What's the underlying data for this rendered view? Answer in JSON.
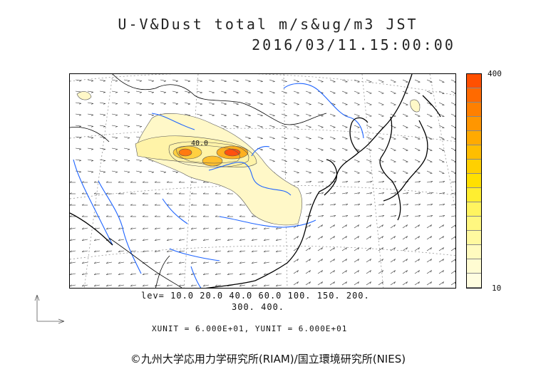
{
  "header": {
    "title_line1": "U-V&Dust total m/s&ug/m3 JST",
    "title_line2": "2016/03/11.15:00:00"
  },
  "legend": {
    "max_label": "400",
    "min_label": "10",
    "colors": [
      "#ff5000",
      "#ff6a00",
      "#ff8000",
      "#ff9600",
      "#ffaa00",
      "#ffbe00",
      "#ffd000",
      "#ffe000",
      "#ffee30",
      "#fff460",
      "#fff780",
      "#fff9a0",
      "#fffbbf",
      "#fffcd2",
      "#fffde0"
    ]
  },
  "levels_text": {
    "line1": "lev= 10.0 20.0 40.0 60.0 100. 150. 200.",
    "line2": "300. 400."
  },
  "units_text": "XUNIT = 6.000E+01, YUNIT = 6.000E+01",
  "contour_label": "40.0",
  "copyright": "©九州大学応用力学研究所(RIAM)/国立環境研究所(NIES)",
  "colors": {
    "coast": "#000000",
    "river": "#1e64ff",
    "plume_light": "#fff8c8",
    "plume_mid": "#ffd040",
    "plume_hot": "#ff6010"
  }
}
